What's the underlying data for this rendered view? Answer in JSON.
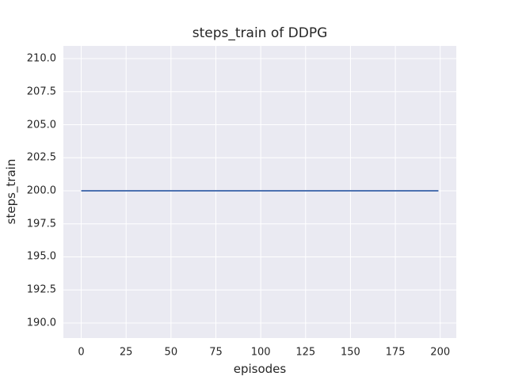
{
  "chart_data": {
    "type": "line",
    "title": "steps_train of DDPG",
    "xlabel": "episodes",
    "ylabel": "steps_train",
    "xlim": [
      -9.95,
      208.95
    ],
    "ylim": [
      188.86,
      210.96
    ],
    "xticks": {
      "values": [
        0,
        25,
        50,
        75,
        100,
        125,
        150,
        175,
        200
      ],
      "labels": [
        "0",
        "25",
        "50",
        "75",
        "100",
        "125",
        "150",
        "175",
        "200"
      ]
    },
    "yticks": {
      "values": [
        190.0,
        192.5,
        195.0,
        197.5,
        200.0,
        202.5,
        205.0,
        207.5,
        210.0
      ],
      "labels": [
        "190.0",
        "192.5",
        "195.0",
        "197.5",
        "200.0",
        "202.5",
        "205.0",
        "207.5",
        "210.0"
      ]
    },
    "grid": true,
    "legend": null,
    "series": [
      {
        "name": "steps_train",
        "x": [
          0,
          199
        ],
        "y": [
          200,
          200
        ],
        "color": "#4C72B0",
        "linewidth": 2
      }
    ],
    "style": {
      "axes_background": "#EAEAF2",
      "grid_color": "#FFFFFF",
      "text_color": "#262626",
      "figure_background": "#FFFFFF"
    }
  }
}
